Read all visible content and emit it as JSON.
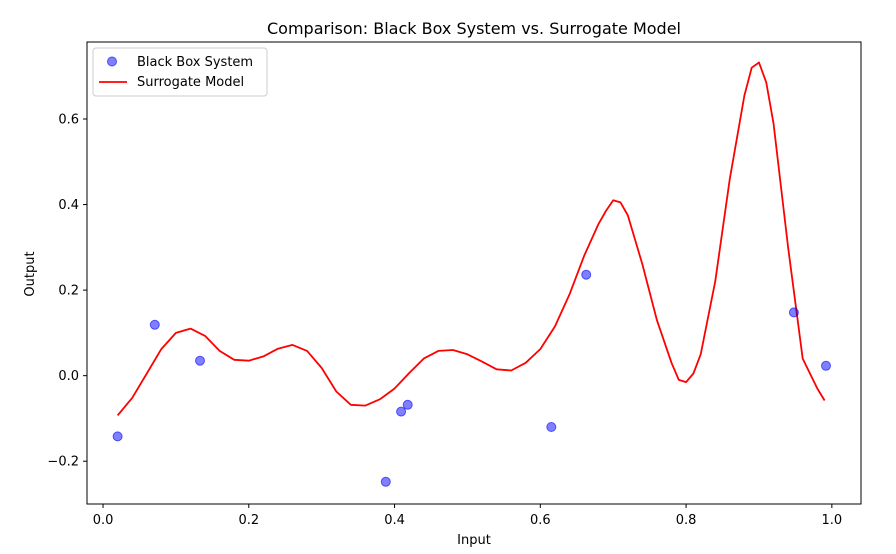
{
  "chart_data": {
    "type": "scatter",
    "title": "Comparison: Black Box System vs. Surrogate Model",
    "xlabel": "Input",
    "ylabel": "Output",
    "xlim": [
      -0.022,
      1.04
    ],
    "ylim": [
      -0.3,
      0.78
    ],
    "xticks": [
      0.0,
      0.2,
      0.4,
      0.6,
      0.8,
      1.0
    ],
    "xtick_labels": [
      "0.0",
      "0.2",
      "0.4",
      "0.6",
      "0.8",
      "1.0"
    ],
    "yticks": [
      -0.2,
      0.0,
      0.2,
      0.4,
      0.6
    ],
    "ytick_labels": [
      "−0.2",
      "0.0",
      "0.2",
      "0.4",
      "0.6"
    ],
    "grid": false,
    "legend_position": "top-left",
    "series": [
      {
        "name": "Black Box System",
        "kind": "scatter",
        "color": "#0000ff",
        "x": [
          0.02,
          0.071,
          0.133,
          0.388,
          0.409,
          0.418,
          0.615,
          0.663,
          0.948,
          0.992
        ],
        "y": [
          -0.142,
          0.119,
          0.035,
          -0.248,
          -0.084,
          -0.068,
          -0.12,
          0.236,
          0.148,
          0.023
        ]
      },
      {
        "name": "Surrogate Model",
        "kind": "line",
        "color": "#ff0000",
        "x": [
          0.02,
          0.04,
          0.06,
          0.08,
          0.1,
          0.12,
          0.14,
          0.16,
          0.18,
          0.2,
          0.22,
          0.24,
          0.26,
          0.28,
          0.3,
          0.32,
          0.34,
          0.36,
          0.38,
          0.4,
          0.42,
          0.44,
          0.46,
          0.48,
          0.5,
          0.52,
          0.54,
          0.56,
          0.58,
          0.6,
          0.62,
          0.64,
          0.66,
          0.68,
          0.69,
          0.7,
          0.71,
          0.72,
          0.74,
          0.76,
          0.78,
          0.79,
          0.8,
          0.81,
          0.82,
          0.84,
          0.86,
          0.88,
          0.89,
          0.9,
          0.91,
          0.92,
          0.94,
          0.96,
          0.98,
          0.99
        ],
        "y": [
          -0.093,
          -0.052,
          0.005,
          0.062,
          0.1,
          0.11,
          0.093,
          0.058,
          0.037,
          0.035,
          0.045,
          0.063,
          0.072,
          0.058,
          0.018,
          -0.037,
          -0.068,
          -0.07,
          -0.055,
          -0.03,
          0.006,
          0.04,
          0.058,
          0.06,
          0.05,
          0.033,
          0.015,
          0.012,
          0.03,
          0.062,
          0.115,
          0.19,
          0.28,
          0.355,
          0.385,
          0.41,
          0.405,
          0.375,
          0.26,
          0.13,
          0.03,
          -0.01,
          -0.015,
          0.005,
          0.05,
          0.22,
          0.46,
          0.655,
          0.72,
          0.732,
          0.685,
          0.59,
          0.3,
          0.04,
          -0.03,
          -0.058
        ]
      }
    ]
  }
}
